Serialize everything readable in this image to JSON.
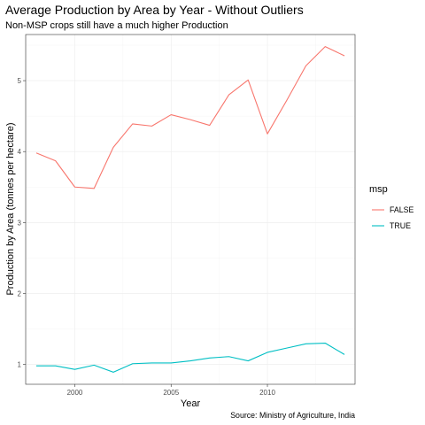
{
  "chart_data": {
    "type": "line",
    "title": "Average Production by Area by Year - Without Outliers",
    "subtitle": "Non-MSP crops still have a much higher Production",
    "xlabel": "Year",
    "ylabel": "Production by Area (tonnes per hectare)",
    "caption": "Source: Ministry of Agriculture, India",
    "xlim": [
      1997.45,
      2014.55
    ],
    "ylim": [
      0.72,
      5.65
    ],
    "x_ticks": [
      2000,
      2005,
      2010
    ],
    "x_minor_ticks": [
      1997.5,
      2002.5,
      2007.5,
      2012.5
    ],
    "y_ticks": [
      1,
      2,
      3,
      4,
      5
    ],
    "y_minor_ticks": [
      1.5,
      2.5,
      3.5,
      4.5,
      5.5
    ],
    "grid": true,
    "legend": {
      "title": "msp",
      "position": "right"
    },
    "x": [
      1998,
      1999,
      2000,
      2001,
      2002,
      2003,
      2004,
      2005,
      2006,
      2007,
      2008,
      2009,
      2010,
      2011,
      2012,
      2013,
      2014
    ],
    "series": [
      {
        "name": "FALSE",
        "color": "#F8766D",
        "values": [
          3.98,
          3.87,
          3.5,
          3.48,
          4.06,
          4.39,
          4.36,
          4.52,
          4.45,
          4.37,
          4.8,
          5.01,
          4.25,
          4.72,
          5.21,
          5.48,
          5.35
        ]
      },
      {
        "name": "TRUE",
        "color": "#00BFC4",
        "values": [
          0.98,
          0.98,
          0.93,
          0.99,
          0.89,
          1.01,
          1.02,
          1.02,
          1.05,
          1.09,
          1.11,
          1.05,
          1.17,
          1.23,
          1.29,
          1.3,
          1.14
        ]
      }
    ]
  }
}
